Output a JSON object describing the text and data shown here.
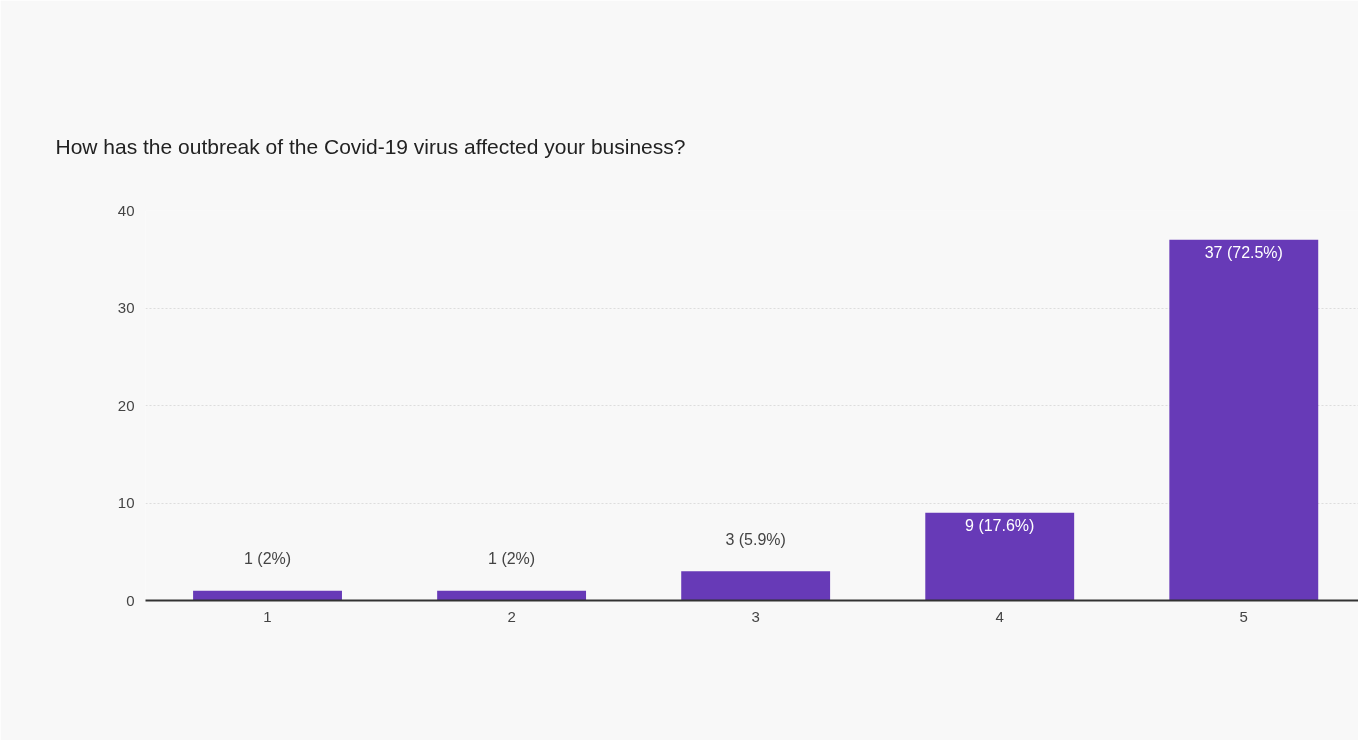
{
  "chart_data": {
    "type": "bar",
    "title": "How has the outbreak of the Covid-19 virus affected your business?",
    "categories": [
      "1",
      "2",
      "3",
      "4",
      "5"
    ],
    "values": [
      1,
      1,
      3,
      9,
      37
    ],
    "value_labels": [
      "1 (2%)",
      "1 (2%)",
      "3 (5.9%)",
      "9 (17.6%)",
      "37 (72.5%)"
    ],
    "color": "#673ab7",
    "ylim": [
      0,
      40
    ],
    "yticks": [
      0,
      10,
      20,
      30,
      40
    ],
    "grid": "y"
  }
}
